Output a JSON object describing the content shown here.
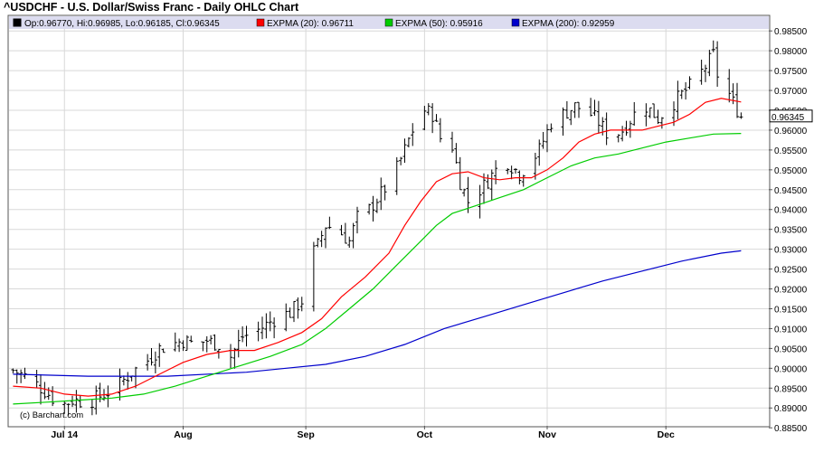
{
  "chart_data": {
    "type": "ohlc",
    "title": "^USDCHF - U.S. Dollar/Swiss Franc - Daily OHLC Chart",
    "legend": {
      "ohlc_text": "Op:0.96770, Hi:0.96985, Lo:0.96185, Cl:0.96345",
      "ohlc_color": "#000000",
      "items": [
        {
          "label": "EXPMA (20): 0.96711",
          "color": "#ff0000"
        },
        {
          "label": "EXPMA (50): 0.95916",
          "color": "#00cc00"
        },
        {
          "label": "EXPMA (200): 0.92959",
          "color": "#0000cc"
        }
      ]
    },
    "last_close_label": "0.96345",
    "credit": "(c) Barchart.com",
    "x_labels": [
      {
        "label": "Jul 14",
        "day": 14
      },
      {
        "label": "Aug",
        "day": 44
      },
      {
        "label": "Sep",
        "day": 75
      },
      {
        "label": "Oct",
        "day": 105
      },
      {
        "label": "Nov",
        "day": 136
      },
      {
        "label": "Dec",
        "day": 166
      }
    ],
    "ylim": [
      0.8855,
      0.9855
    ],
    "yticks": [
      "0.88500",
      "0.89000",
      "0.89500",
      "0.90000",
      "0.90500",
      "0.91000",
      "0.91500",
      "0.92000",
      "0.92500",
      "0.93000",
      "0.93500",
      "0.94000",
      "0.94500",
      "0.95000",
      "0.95500",
      "0.96000",
      "0.96500",
      "0.97000",
      "0.97500",
      "0.98000",
      "0.98500"
    ],
    "grid": true,
    "series_close_points": [
      [
        1,
        0.8995
      ],
      [
        5,
        0.8975
      ],
      [
        10,
        0.8935
      ],
      [
        13,
        0.8905
      ],
      [
        16,
        0.892
      ],
      [
        20,
        0.8915
      ],
      [
        23,
        0.893
      ],
      [
        27,
        0.895
      ],
      [
        31,
        0.899
      ],
      [
        35,
        0.902
      ],
      [
        38,
        0.905
      ],
      [
        41,
        0.906
      ],
      [
        44,
        0.907
      ],
      [
        47,
        0.906
      ],
      [
        50,
        0.907
      ],
      [
        53,
        0.906
      ],
      [
        56,
        0.903
      ],
      [
        59,
        0.908
      ],
      [
        62,
        0.909
      ],
      [
        65,
        0.911
      ],
      [
        68,
        0.913
      ],
      [
        71,
        0.914
      ],
      [
        74,
        0.917
      ],
      [
        75,
        0.916
      ],
      [
        76,
        0.928
      ],
      [
        78,
        0.931
      ],
      [
        80,
        0.936
      ],
      [
        83,
        0.935
      ],
      [
        86,
        0.932
      ],
      [
        88,
        0.938
      ],
      [
        91,
        0.94
      ],
      [
        94,
        0.944
      ],
      [
        97,
        0.948
      ],
      [
        100,
        0.955
      ],
      [
        102,
        0.96
      ],
      [
        105,
        0.965
      ],
      [
        107,
        0.964
      ],
      [
        109,
        0.958
      ],
      [
        112,
        0.956
      ],
      [
        114,
        0.947
      ],
      [
        116,
        0.942
      ],
      [
        118,
        0.944
      ],
      [
        120,
        0.946
      ],
      [
        123,
        0.95
      ],
      [
        126,
        0.952
      ],
      [
        129,
        0.949
      ],
      [
        131,
        0.951
      ],
      [
        134,
        0.955
      ],
      [
        137,
        0.962
      ],
      [
        140,
        0.964
      ],
      [
        143,
        0.966
      ],
      [
        146,
        0.965
      ],
      [
        149,
        0.962
      ],
      [
        152,
        0.958
      ],
      [
        155,
        0.96
      ],
      [
        158,
        0.964
      ],
      [
        161,
        0.966
      ],
      [
        164,
        0.963
      ],
      [
        167,
        0.966
      ],
      [
        170,
        0.969
      ],
      [
        173,
        0.972
      ],
      [
        176,
        0.976
      ],
      [
        178,
        0.979
      ],
      [
        179,
        0.974
      ],
      [
        181,
        0.972
      ],
      [
        182,
        0.969
      ],
      [
        183,
        0.967
      ],
      [
        185,
        0.96345
      ]
    ],
    "series_ema20": [
      [
        1,
        0.8955
      ],
      [
        8,
        0.895
      ],
      [
        14,
        0.8935
      ],
      [
        20,
        0.893
      ],
      [
        26,
        0.8935
      ],
      [
        32,
        0.8955
      ],
      [
        38,
        0.8985
      ],
      [
        44,
        0.9015
      ],
      [
        50,
        0.9035
      ],
      [
        56,
        0.9045
      ],
      [
        62,
        0.9045
      ],
      [
        68,
        0.9065
      ],
      [
        74,
        0.909
      ],
      [
        79,
        0.9125
      ],
      [
        84,
        0.918
      ],
      [
        90,
        0.923
      ],
      [
        96,
        0.929
      ],
      [
        100,
        0.936
      ],
      [
        104,
        0.942
      ],
      [
        108,
        0.947
      ],
      [
        112,
        0.949
      ],
      [
        116,
        0.9495
      ],
      [
        120,
        0.948
      ],
      [
        124,
        0.9475
      ],
      [
        128,
        0.948
      ],
      [
        132,
        0.948
      ],
      [
        136,
        0.95
      ],
      [
        140,
        0.953
      ],
      [
        144,
        0.957
      ],
      [
        148,
        0.959
      ],
      [
        152,
        0.96
      ],
      [
        156,
        0.96
      ],
      [
        160,
        0.96
      ],
      [
        164,
        0.961
      ],
      [
        168,
        0.962
      ],
      [
        172,
        0.964
      ],
      [
        176,
        0.967
      ],
      [
        180,
        0.968
      ],
      [
        185,
        0.9671
      ]
    ],
    "series_ema50": [
      [
        1,
        0.891
      ],
      [
        10,
        0.8915
      ],
      [
        18,
        0.892
      ],
      [
        26,
        0.8925
      ],
      [
        34,
        0.8935
      ],
      [
        42,
        0.8955
      ],
      [
        50,
        0.898
      ],
      [
        58,
        0.9005
      ],
      [
        66,
        0.903
      ],
      [
        74,
        0.906
      ],
      [
        80,
        0.91
      ],
      [
        86,
        0.915
      ],
      [
        92,
        0.92
      ],
      [
        98,
        0.926
      ],
      [
        104,
        0.932
      ],
      [
        108,
        0.936
      ],
      [
        112,
        0.939
      ],
      [
        118,
        0.941
      ],
      [
        124,
        0.943
      ],
      [
        130,
        0.945
      ],
      [
        136,
        0.948
      ],
      [
        142,
        0.951
      ],
      [
        148,
        0.953
      ],
      [
        154,
        0.954
      ],
      [
        160,
        0.9555
      ],
      [
        166,
        0.957
      ],
      [
        172,
        0.958
      ],
      [
        178,
        0.959
      ],
      [
        185,
        0.95916
      ]
    ],
    "series_ema200": [
      [
        1,
        0.8985
      ],
      [
        20,
        0.898
      ],
      [
        40,
        0.898
      ],
      [
        60,
        0.899
      ],
      [
        70,
        0.9
      ],
      [
        80,
        0.901
      ],
      [
        90,
        0.903
      ],
      [
        100,
        0.906
      ],
      [
        110,
        0.91
      ],
      [
        120,
        0.913
      ],
      [
        130,
        0.916
      ],
      [
        140,
        0.919
      ],
      [
        150,
        0.922
      ],
      [
        160,
        0.9245
      ],
      [
        170,
        0.927
      ],
      [
        180,
        0.929
      ],
      [
        185,
        0.92959
      ]
    ]
  }
}
